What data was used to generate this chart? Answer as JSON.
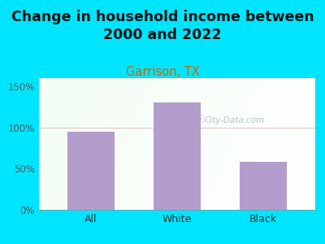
{
  "title": "Change in household income between\n2000 and 2022",
  "subtitle": "Garrison, TX",
  "categories": [
    "All",
    "White",
    "Black"
  ],
  "values": [
    95,
    130,
    58
  ],
  "bar_color": "#b39dcc",
  "title_fontsize": 12.5,
  "subtitle_fontsize": 10.5,
  "subtitle_color": "#cc6600",
  "title_color": "#111111",
  "bg_color": "#00e5ff",
  "ylabel_color": "#555555",
  "xlabel_color": "#333333",
  "ylim": [
    0,
    160
  ],
  "yticks": [
    0,
    50,
    100,
    150
  ],
  "ytick_labels": [
    "0%",
    "50%",
    "100%",
    "150%"
  ],
  "watermark_text": "City-Data.com",
  "watermark_color": "#aabbc8"
}
